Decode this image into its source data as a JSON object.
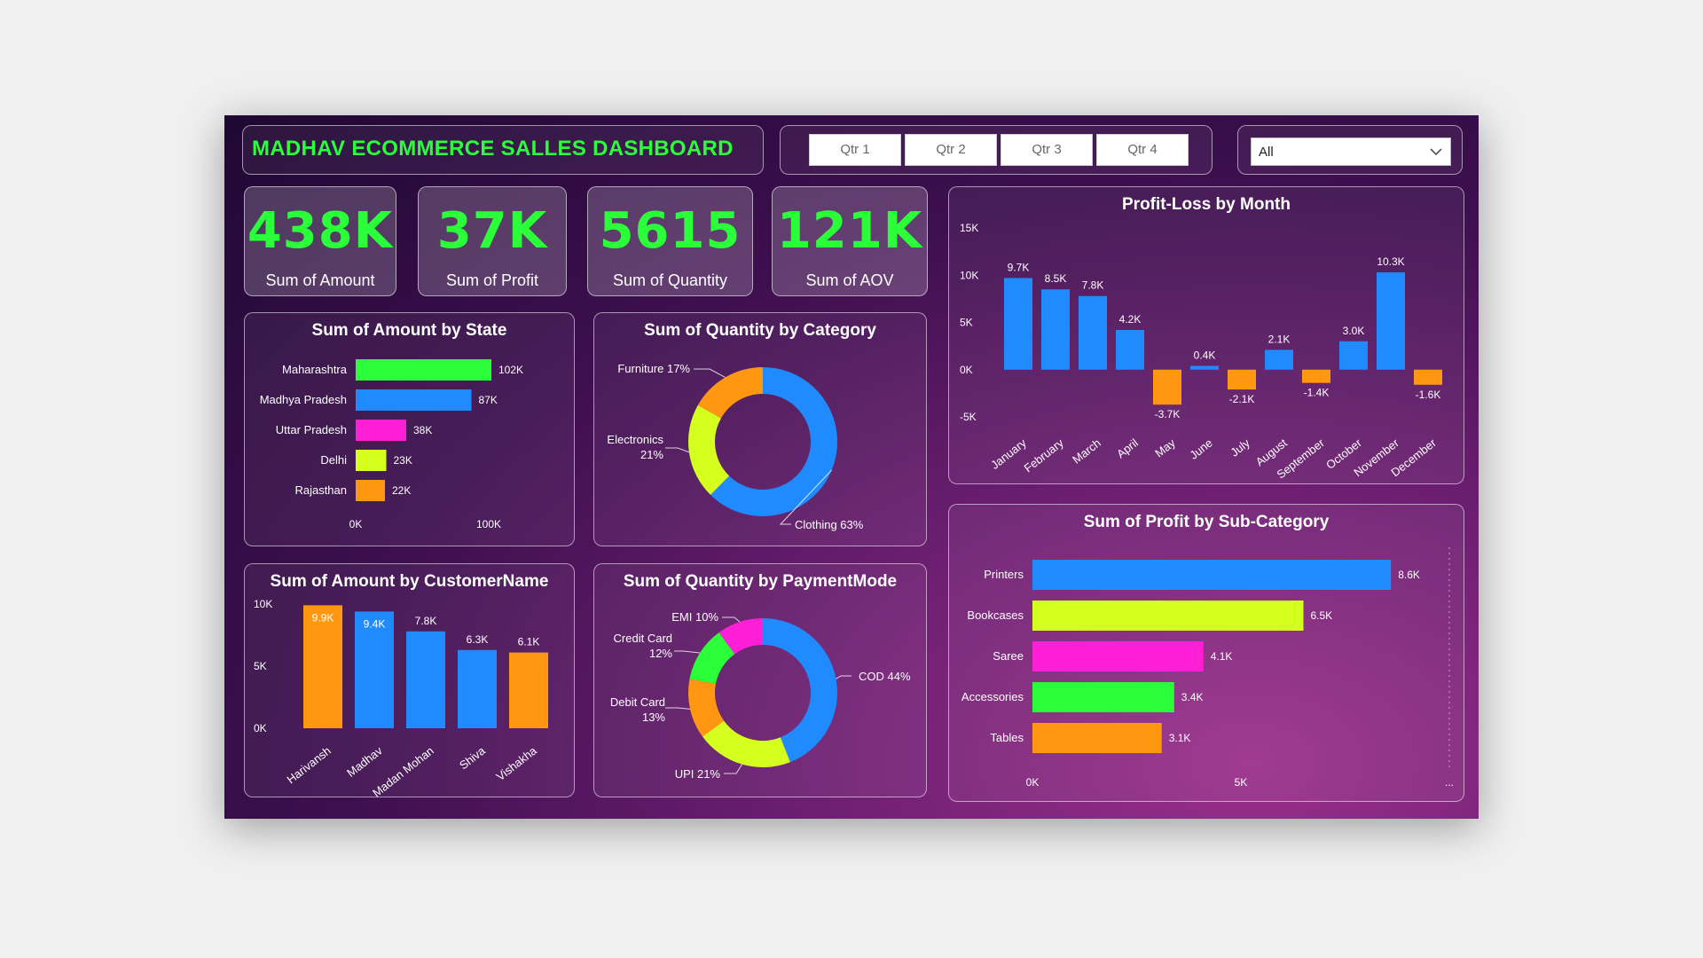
{
  "header": {
    "title": "MADHAV ECOMMERCE SALLES DASHBOARD"
  },
  "quarters": [
    "Qtr 1",
    "Qtr 2",
    "Qtr 3",
    "Qtr 4"
  ],
  "filter": {
    "selected": "All",
    "icon": "chevron-down-icon"
  },
  "kpis": [
    {
      "value": "438K",
      "label": "Sum of Amount"
    },
    {
      "value": "37K",
      "label": "Sum of Profit"
    },
    {
      "value": "5615",
      "label": "Sum of Quantity"
    },
    {
      "value": "121K",
      "label": "Sum of AOV"
    }
  ],
  "colors": {
    "green": "#2aff3a",
    "blue": "#1f8bff",
    "magenta": "#ff1fd6",
    "yellow": "#d5ff1f",
    "orange": "#ff9810"
  },
  "chart_data": [
    {
      "id": "amount_by_state",
      "type": "bar",
      "orientation": "horizontal",
      "title": "Sum of Amount by State",
      "categories": [
        "Maharashtra",
        "Madhya Pradesh",
        "Uttar Pradesh",
        "Delhi",
        "Rajasthan"
      ],
      "values": [
        102,
        87,
        38,
        23,
        22
      ],
      "labels": [
        "102K",
        "87K",
        "38K",
        "23K",
        "22K"
      ],
      "bar_colors": [
        "#2aff3a",
        "#1f8bff",
        "#ff1fd6",
        "#d5ff1f",
        "#ff9810"
      ],
      "xlim": [
        0,
        100
      ],
      "ticks": [
        0,
        100
      ],
      "tick_labels": [
        "0K",
        "100K"
      ]
    },
    {
      "id": "quantity_by_category",
      "type": "pie",
      "donut": true,
      "title": "Sum of Quantity by Category",
      "categories": [
        "Clothing",
        "Electronics",
        "Furniture"
      ],
      "values": [
        63,
        21,
        17
      ],
      "labels": [
        "Clothing 63%",
        "Electronics 21%",
        "Furniture 17%"
      ],
      "colors": [
        "#1f8bff",
        "#d5ff1f",
        "#ff9810"
      ]
    },
    {
      "id": "profit_loss_by_month",
      "type": "bar",
      "title": "Profit-Loss by Month",
      "categories": [
        "January",
        "February",
        "March",
        "April",
        "May",
        "June",
        "July",
        "August",
        "September",
        "October",
        "November",
        "December"
      ],
      "values": [
        9.7,
        8.5,
        7.8,
        4.2,
        -3.7,
        0.4,
        -2.1,
        2.1,
        -1.4,
        3.0,
        10.3,
        -1.6
      ],
      "labels": [
        "9.7K",
        "8.5K",
        "7.8K",
        "4.2K",
        "-3.7K",
        "0.4K",
        "-2.1K",
        "2.1K",
        "-1.4K",
        "3.0K",
        "10.3K",
        "-1.6K"
      ],
      "positive_color": "#1f8bff",
      "negative_color": "#ff9810",
      "ylim": [
        -5,
        15
      ],
      "ticks": [
        -5,
        0,
        5,
        10,
        15
      ],
      "tick_labels": [
        "-5K",
        "0K",
        "5K",
        "10K",
        "15K"
      ]
    },
    {
      "id": "amount_by_customer",
      "type": "bar",
      "title": "Sum of Amount by CustomerName",
      "categories": [
        "Harivansh",
        "Madhav",
        "Madan Mohan",
        "Shiva",
        "Vishakha"
      ],
      "values": [
        9.9,
        9.4,
        7.8,
        6.3,
        6.1
      ],
      "labels": [
        "9.9K",
        "9.4K",
        "7.8K",
        "6.3K",
        "6.1K"
      ],
      "bar_colors": [
        "#ff9810",
        "#1f8bff",
        "#1f8bff",
        "#1f8bff",
        "#ff9810"
      ],
      "ylim": [
        0,
        10
      ],
      "ticks": [
        0,
        5,
        10
      ],
      "tick_labels": [
        "0K",
        "5K",
        "10K"
      ]
    },
    {
      "id": "quantity_by_paymentmode",
      "type": "pie",
      "donut": true,
      "title": "Sum of Quantity by PaymentMode",
      "categories": [
        "COD",
        "UPI",
        "Debit Card",
        "Credit Card",
        "EMI"
      ],
      "values": [
        44,
        21,
        13,
        12,
        10
      ],
      "labels": [
        "COD 44%",
        "UPI 21%",
        "Debit Card 13%",
        "Credit Card 12%",
        "EMI 10%"
      ],
      "colors": [
        "#1f8bff",
        "#d5ff1f",
        "#ff9810",
        "#2aff3a",
        "#ff1fd6"
      ]
    },
    {
      "id": "profit_by_subcategory",
      "type": "bar",
      "orientation": "horizontal",
      "title": "Sum of Profit by Sub-Category",
      "categories": [
        "Printers",
        "Bookcases",
        "Saree",
        "Accessories",
        "Tables"
      ],
      "values": [
        8.6,
        6.5,
        4.1,
        3.4,
        3.1
      ],
      "labels": [
        "8.6K",
        "6.5K",
        "4.1K",
        "3.4K",
        "3.1K"
      ],
      "bar_colors": [
        "#1f8bff",
        "#d5ff1f",
        "#ff1fd6",
        "#2aff3a",
        "#ff9810"
      ],
      "xlim": [
        0,
        10
      ],
      "ticks": [
        0,
        5
      ],
      "tick_labels": [
        "0K",
        "5K"
      ],
      "end_marker": "..."
    }
  ]
}
